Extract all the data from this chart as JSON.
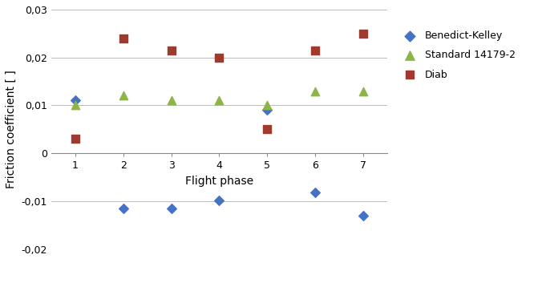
{
  "x": [
    1,
    2,
    3,
    4,
    5,
    6,
    7
  ],
  "benedict_kelley": [
    0.011,
    -0.0115,
    -0.0115,
    -0.0098,
    0.009,
    -0.0082,
    -0.013
  ],
  "standard_14179": [
    0.01,
    0.012,
    0.011,
    0.011,
    0.01,
    0.013,
    0.013
  ],
  "diab": [
    0.003,
    0.024,
    0.0215,
    0.02,
    0.005,
    0.0215,
    0.025
  ],
  "bk_color": "#4472C4",
  "std_color": "#8DB646",
  "diab_color": "#9E3B2C",
  "ylim": [
    -0.02,
    0.03
  ],
  "yticks": [
    -0.02,
    -0.01,
    0,
    0.01,
    0.02,
    0.03
  ],
  "ytick_labels": [
    "-0,02",
    "-0,01",
    "0",
    "0,01",
    "0,02",
    "0,03"
  ],
  "xlim": [
    0.5,
    7.5
  ],
  "xticks": [
    1,
    2,
    3,
    4,
    5,
    6,
    7
  ],
  "xlabel": "Flight phase",
  "ylabel": "Friction coefficient [ ]",
  "legend_labels": [
    "Benedict-Kelley",
    "Standard 14179-2",
    "Diab"
  ],
  "bg_color": "#FFFFFF",
  "grid_color": "#BBBBBB"
}
